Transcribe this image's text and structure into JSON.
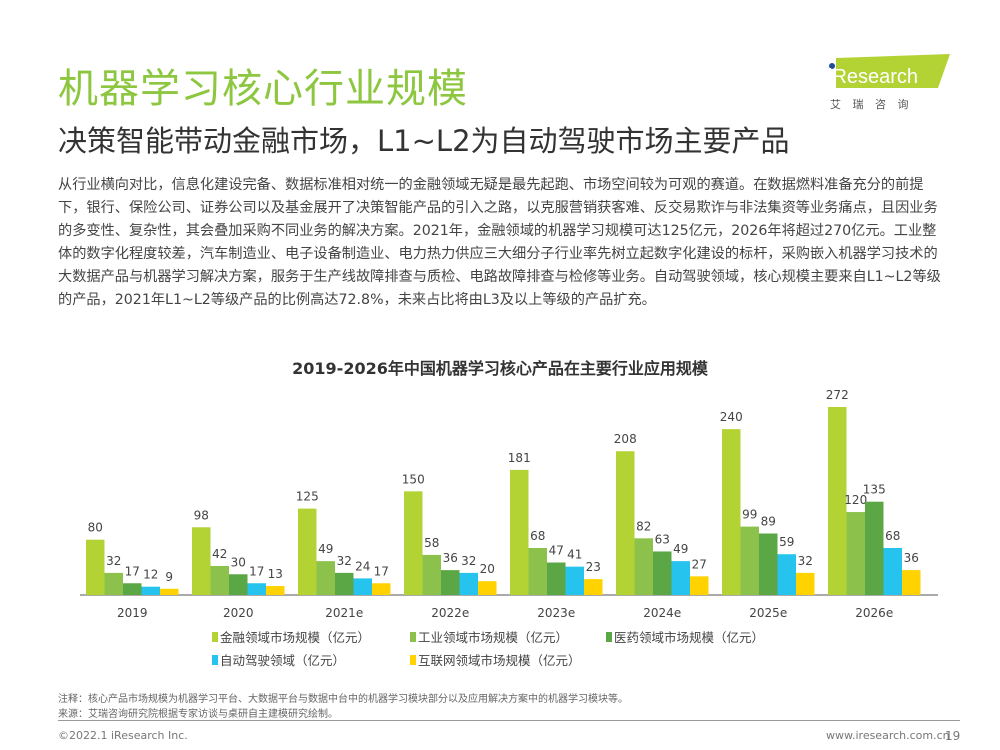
{
  "header": {
    "title": "机器学习核心行业规模",
    "subtitle": "决策智能带动金融市场，L1~L2为自动驾驶市场主要产品",
    "logo_text": "iResearch",
    "logo_cn": "艾 瑞 咨 询"
  },
  "body_text": "从行业横向对比，信息化建设完备、数据标准相对统一的金融领域无疑是最先起跑、市场空间较为可观的赛道。在数据燃料准备充分的前提下，银行、保险公司、证券公司以及基金展开了决策智能产品的引入之路，以克服营销获客难、反交易欺诈与非法集资等业务痛点，且因业务的多变性、复杂性，其会叠加采购不同业务的解决方案。2021年，金融领域的机器学习规模可达125亿元，2026年将超过270亿元。工业整体的数字化程度较差，汽车制造业、电子设备制造业、电力热力供应三大细分子行业率先树立起数字化建设的标杆，采购嵌入机器学习技术的大数据产品与机器学习解决方案，服务于生产线故障排查与质检、电路故障排查与检修等业务。自动驾驶领域，核心规模主要来自L1~L2等级的产品，2021年L1~L2等级产品的比例高达72.8%，未来占比将由L3及以上等级的产品扩充。",
  "chart_data": {
    "type": "bar",
    "title": "2019-2026年中国机器学习核心产品在主要行业应用规模",
    "categories": [
      "2019",
      "2020",
      "2021e",
      "2022e",
      "2023e",
      "2024e",
      "2025e",
      "2026e"
    ],
    "series": [
      {
        "name": "金融领域市场规模（亿元）",
        "color": "#b3d334",
        "values": [
          80,
          98,
          125,
          150,
          181,
          208,
          240,
          272
        ]
      },
      {
        "name": "工业领域市场规模（亿元）",
        "color": "#8cc14b",
        "values": [
          32,
          42,
          49,
          58,
          68,
          82,
          99,
          120
        ]
      },
      {
        "name": "医药领域市场规模（亿元）",
        "color": "#5ba745",
        "values": [
          17,
          30,
          32,
          36,
          47,
          63,
          89,
          135
        ]
      },
      {
        "name": "自动驾驶领域（亿元）",
        "color": "#27c3ef",
        "values": [
          12,
          17,
          24,
          32,
          41,
          49,
          59,
          68
        ]
      },
      {
        "name": "互联网领域市场规模（亿元）",
        "color": "#ffd200",
        "values": [
          9,
          13,
          17,
          20,
          23,
          27,
          32,
          36
        ]
      }
    ],
    "legend": "bottom",
    "grid": false
  },
  "footer": {
    "note": "注释：核心产品市场规模为机器学习平台、大数据平台与数据中台中的机器学习模块部分以及应用解决方案中的机器学习模块等。",
    "source": "来源：艾瑞咨询研究院根据专家访谈与桌研自主建模研究绘制。",
    "copyright": "©2022.1 iResearch Inc.",
    "url": "www.iresearch.com.cn",
    "page": "19"
  }
}
